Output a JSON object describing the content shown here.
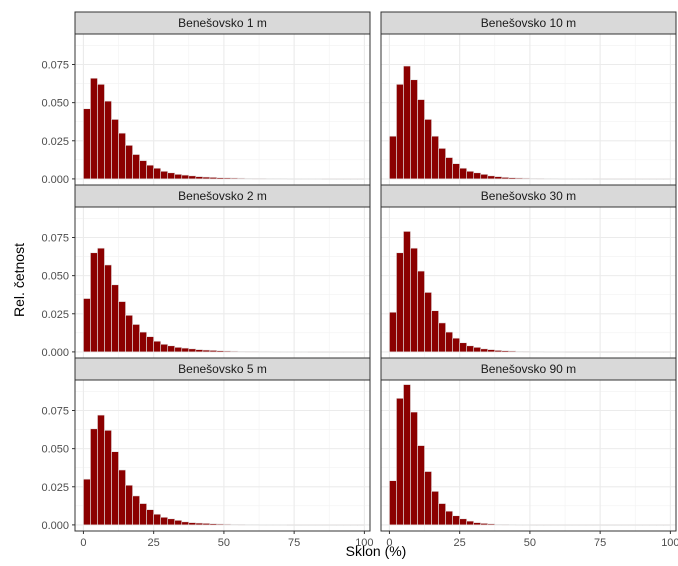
{
  "chart_data": {
    "type": "bar",
    "xlabel": "Sklon (%)",
    "ylabel": "Rel. četnost",
    "x_ticks": [
      "0",
      "25",
      "50",
      "75",
      "100"
    ],
    "y_ticks": [
      "0.000",
      "0.025",
      "0.050",
      "0.075"
    ],
    "xlim": [
      -3,
      102
    ],
    "ylim": [
      -0.004,
      0.095
    ],
    "grid": true,
    "bar_fill": "#8B0000",
    "bar_outline": "#e6e6e6",
    "bin_centers": [
      1.25,
      3.75,
      6.25,
      8.75,
      11.25,
      13.75,
      16.25,
      18.75,
      21.25,
      23.75,
      26.25,
      28.75,
      31.25,
      33.75,
      36.25,
      38.75,
      41.25,
      43.75,
      46.25,
      48.75,
      51.25,
      53.75,
      56.25,
      58.75,
      61.25,
      63.75,
      66.25,
      68.75,
      71.25,
      73.75,
      76.25,
      78.75,
      81.25,
      83.75,
      86.25,
      88.75,
      91.25,
      93.75,
      96.25,
      98.75
    ],
    "bin_width": 2.5,
    "panels": [
      {
        "name": "Benešovsko 1 m",
        "values": [
          0.046,
          0.066,
          0.062,
          0.051,
          0.039,
          0.03,
          0.022,
          0.016,
          0.012,
          0.009,
          0.007,
          0.005,
          0.004,
          0.003,
          0.0025,
          0.002,
          0.0015,
          0.0012,
          0.001,
          0.0008,
          0.0007,
          0.0006,
          0.0005,
          0.0004,
          0.0003,
          0.0003,
          0.0002,
          0.0002,
          0.0002,
          0.0001,
          0.0001,
          0.0001,
          0.0001,
          0.0001,
          0,
          0,
          0,
          0,
          0,
          0
        ]
      },
      {
        "name": "Benešovsko 10 m",
        "values": [
          0.028,
          0.062,
          0.074,
          0.065,
          0.052,
          0.039,
          0.028,
          0.02,
          0.014,
          0.01,
          0.007,
          0.005,
          0.004,
          0.003,
          0.002,
          0.0015,
          0.001,
          0.0008,
          0.0006,
          0.0005,
          0.0004,
          0.0003,
          0.0002,
          0.0002,
          0.0001,
          0.0001,
          0.0001,
          0.0001,
          0.0001,
          0,
          0,
          0,
          0,
          0,
          0,
          0,
          0,
          0,
          0,
          0
        ]
      },
      {
        "name": "Benešovsko 2 m",
        "values": [
          0.035,
          0.065,
          0.068,
          0.057,
          0.044,
          0.033,
          0.024,
          0.018,
          0.013,
          0.01,
          0.007,
          0.005,
          0.004,
          0.003,
          0.0025,
          0.002,
          0.0015,
          0.0012,
          0.001,
          0.0008,
          0.0006,
          0.0005,
          0.0004,
          0.0003,
          0.0003,
          0.0002,
          0.0002,
          0.0001,
          0.0001,
          0.0001,
          0.0001,
          0.0001,
          0,
          0,
          0,
          0,
          0,
          0,
          0,
          0
        ]
      },
      {
        "name": "Benešovsko 30 m",
        "values": [
          0.026,
          0.065,
          0.079,
          0.068,
          0.053,
          0.039,
          0.027,
          0.019,
          0.013,
          0.009,
          0.006,
          0.004,
          0.003,
          0.002,
          0.0015,
          0.001,
          0.0008,
          0.0006,
          0.0004,
          0.0003,
          0.0002,
          0.0002,
          0.0001,
          0.0001,
          0.0001,
          0,
          0,
          0,
          0,
          0,
          0,
          0,
          0,
          0,
          0,
          0,
          0,
          0,
          0,
          0
        ]
      },
      {
        "name": "Benešovsko 5 m",
        "values": [
          0.03,
          0.063,
          0.072,
          0.062,
          0.048,
          0.036,
          0.026,
          0.019,
          0.014,
          0.01,
          0.007,
          0.005,
          0.004,
          0.003,
          0.002,
          0.0015,
          0.0012,
          0.001,
          0.0008,
          0.0006,
          0.0005,
          0.0004,
          0.0003,
          0.0002,
          0.0002,
          0.0001,
          0.0001,
          0.0001,
          0.0001,
          0,
          0,
          0,
          0,
          0,
          0,
          0,
          0,
          0,
          0,
          0
        ]
      },
      {
        "name": "Benešovsko 90 m",
        "values": [
          0.029,
          0.083,
          0.092,
          0.074,
          0.052,
          0.035,
          0.022,
          0.014,
          0.009,
          0.006,
          0.004,
          0.0025,
          0.0015,
          0.001,
          0.0007,
          0.0004,
          0.0003,
          0.0002,
          0.0001,
          0.0001,
          0,
          0,
          0,
          0,
          0,
          0,
          0,
          0,
          0,
          0,
          0,
          0,
          0,
          0,
          0,
          0,
          0,
          0,
          0,
          0
        ]
      }
    ]
  }
}
